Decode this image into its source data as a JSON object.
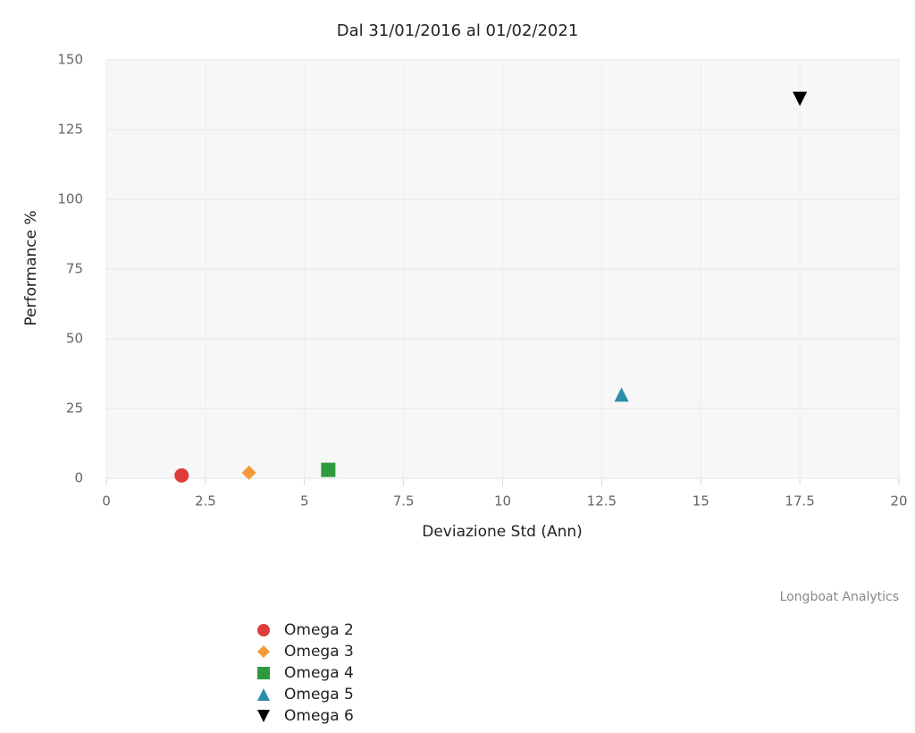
{
  "chart_data": {
    "type": "scatter",
    "title": "Dal 31/01/2016 al 01/02/2021",
    "x_label": "Deviazione Std (Ann)",
    "y_label": "Performance %",
    "credit": "Longboat Analytics",
    "xlim": [
      0,
      20
    ],
    "xticks": [
      0,
      2.5,
      5,
      7.5,
      10,
      12.5,
      15,
      17.5,
      20
    ],
    "ylim": [
      0,
      150
    ],
    "yticks": [
      0,
      25,
      50,
      75,
      100,
      125,
      150
    ],
    "grid": true,
    "series": [
      {
        "name": "Omega 2",
        "color": "#e03c3c",
        "marker": "circle",
        "x": [
          1.9
        ],
        "values": [
          1
        ]
      },
      {
        "name": "Omega 3",
        "color": "#f59a3a",
        "marker": "diamond",
        "x": [
          3.6
        ],
        "values": [
          2
        ]
      },
      {
        "name": "Omega 4",
        "color": "#2e9a3e",
        "marker": "square",
        "x": [
          5.6
        ],
        "values": [
          3
        ]
      },
      {
        "name": "Omega 5",
        "color": "#2a8fa8",
        "marker": "triangle",
        "x": [
          13
        ],
        "values": [
          30
        ]
      },
      {
        "name": "Omega 6",
        "color": "#000000",
        "marker": "triangle-down",
        "x": [
          17.5
        ],
        "values": [
          136
        ]
      }
    ]
  }
}
